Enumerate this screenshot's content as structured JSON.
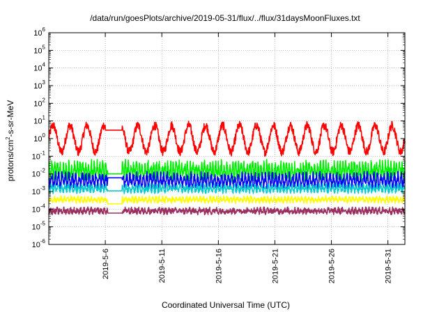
{
  "chart_data": {
    "type": "line",
    "title": "/data/run/goesPlots/archive/2019-05-31/flux/../flux/31daysMoonFluxes.txt",
    "xlabel": "Coordinated Universal Time (UTC)",
    "ylabel": {
      "base": "protons/cm",
      "sup": "2",
      "rest": "-s-sr-MeV"
    },
    "yscale": "log",
    "ylim": [
      1e-06,
      1000000.0
    ],
    "y_ticks": [
      {
        "exp": "-6",
        "value": 1e-06
      },
      {
        "exp": "-5",
        "value": 1e-05
      },
      {
        "exp": "-4",
        "value": 0.0001
      },
      {
        "exp": "-3",
        "value": 0.001
      },
      {
        "exp": "-2",
        "value": 0.01
      },
      {
        "exp": "-1",
        "value": 0.1
      },
      {
        "exp": "0",
        "value": 1
      },
      {
        "exp": "1",
        "value": 10
      },
      {
        "exp": "2",
        "value": 100
      },
      {
        "exp": "3",
        "value": 1000
      },
      {
        "exp": "4",
        "value": 10000
      },
      {
        "exp": "5",
        "value": 100000
      },
      {
        "exp": "6",
        "value": 1000000
      }
    ],
    "xlim": [
      "2019-05-01",
      "2019-06-01T12:00"
    ],
    "x_ticks": [
      "2019-5-6",
      "2019-5-11",
      "2019-5-16",
      "2019-5-21",
      "2019-5-26",
      "2019-5-31"
    ],
    "grid": true,
    "series": [
      {
        "color": "#ff0000",
        "median": 1.0,
        "amp": 0.75,
        "noise": 0.25,
        "period_days": 1.5,
        "gap": [
          5.0,
          6.5,
          3.0
        ]
      },
      {
        "color": "#00ee00",
        "median": 0.015,
        "amp": 0.35,
        "noise": 0.3,
        "period_days": 0.25,
        "gap": [
          5.2,
          6.5,
          0.01
        ]
      },
      {
        "color": "#0000ff",
        "median": 0.004,
        "amp": 0.3,
        "noise": 0.25,
        "period_days": 0.3,
        "gap": [
          5.2,
          6.5,
          0.006
        ]
      },
      {
        "color": "#00cccc",
        "median": 0.0015,
        "amp": 0.15,
        "noise": 0.15,
        "period_days": 0.3,
        "gap": [
          5.2,
          6.5,
          0.0011
        ]
      },
      {
        "color": "#ffff00",
        "median": 0.00035,
        "amp": 0.1,
        "noise": 0.12,
        "period_days": 0.3,
        "gap": [
          5.2,
          6.5,
          0.0002
        ]
      },
      {
        "color": "#9b3060",
        "median": 8e-05,
        "amp": 0.08,
        "noise": 0.15,
        "period_days": 0.3,
        "gap": [
          5.2,
          6.5,
          6e-05
        ]
      }
    ]
  }
}
